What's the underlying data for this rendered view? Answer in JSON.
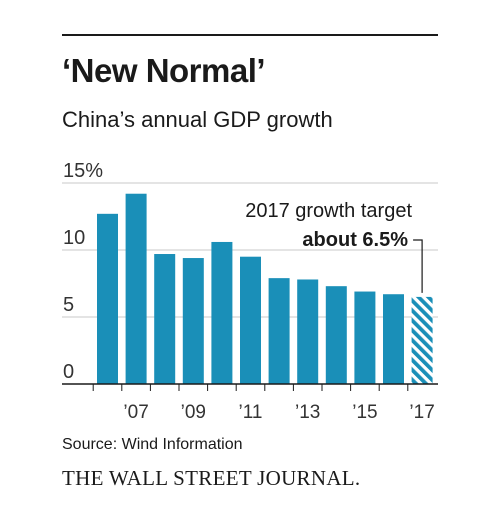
{
  "header": {
    "title": "‘New Normal’",
    "subtitle": "China’s annual GDP growth"
  },
  "footer": {
    "source": "Source: Wind Information",
    "publisher": "THE WALL STREET JOURNAL."
  },
  "colors": {
    "bar": "#1a8fb8",
    "target_hatch": "#1a8fb8",
    "grid": "#c8c8c8",
    "text": "#1a1a1a"
  },
  "chart_data": {
    "type": "bar",
    "categories": [
      "2006",
      "2007",
      "2008",
      "2009",
      "2010",
      "2011",
      "2012",
      "2013",
      "2014",
      "2015",
      "2016",
      "2017"
    ],
    "values": [
      12.7,
      14.2,
      9.7,
      9.4,
      10.6,
      9.5,
      7.9,
      7.8,
      7.3,
      6.9,
      6.7,
      6.5
    ],
    "x_tick_labels": [
      "",
      "’07",
      "",
      "’09",
      "",
      "’11",
      "",
      "’13",
      "",
      "’15",
      "",
      "’17"
    ],
    "y_ticks": [
      0,
      5,
      10,
      15
    ],
    "y_tick_labels": [
      "0",
      "5",
      "10",
      "15%"
    ],
    "ylim": [
      0,
      15
    ],
    "grid": true,
    "highlight": {
      "category": "2017",
      "style": "hatched",
      "label_line1": "2017 growth target",
      "label_line2": "about 6.5%"
    }
  }
}
